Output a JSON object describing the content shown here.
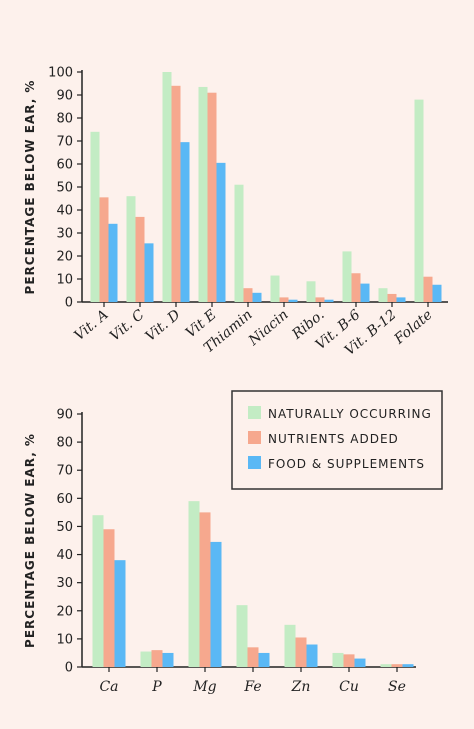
{
  "colors": {
    "background": "#fdf1ec",
    "naturally_occurring": "#c3ecc4",
    "nutrients_added": "#f6a88e",
    "food_supplements": "#5ab8f5",
    "axis": "#222222"
  },
  "legend": {
    "placement": "top-right of lower chart",
    "items": [
      {
        "label": "NATURALLY OCCURRING",
        "color_key": "naturally_occurring"
      },
      {
        "label": "NUTRIENTS ADDED",
        "color_key": "nutrients_added"
      },
      {
        "label": "FOOD & SUPPLEMENTS",
        "color_key": "food_supplements"
      }
    ]
  },
  "chart_data": [
    {
      "type": "bar",
      "title": "",
      "xlabel": "",
      "ylabel": "PERCENTAGE BELOW EAR, %",
      "ylim": [
        0,
        100
      ],
      "yticks": [
        0,
        10,
        20,
        30,
        40,
        50,
        60,
        70,
        80,
        90,
        100
      ],
      "grid": false,
      "categories": [
        "Vit. A",
        "Vit. C",
        "Vit. D",
        "Vit E",
        "Thiamin",
        "Niacin",
        "Ribo.",
        "Vit. B-6",
        "Vit. B-12",
        "Folate"
      ],
      "series": [
        {
          "name": "NATURALLY OCCURRING",
          "color_key": "naturally_occurring",
          "values": [
            74,
            46,
            100,
            93.5,
            51,
            11.5,
            9,
            22,
            6,
            88
          ]
        },
        {
          "name": "NUTRIENTS ADDED",
          "color_key": "nutrients_added",
          "values": [
            45.5,
            37,
            94,
            91,
            6,
            2,
            2,
            12.5,
            3.5,
            11
          ]
        },
        {
          "name": "FOOD & SUPPLEMENTS",
          "color_key": "food_supplements",
          "values": [
            34,
            25.5,
            69.5,
            60.5,
            4,
            1,
            1,
            8,
            2,
            7.5
          ]
        }
      ]
    },
    {
      "type": "bar",
      "title": "",
      "xlabel": "",
      "ylabel": "PERCENTAGE BELOW EAR, %",
      "ylim": [
        0,
        90
      ],
      "yticks": [
        0,
        10,
        20,
        30,
        40,
        50,
        60,
        70,
        80,
        90
      ],
      "grid": false,
      "categories": [
        "Ca",
        "P",
        "Mg",
        "Fe",
        "Zn",
        "Cu",
        "Se"
      ],
      "series": [
        {
          "name": "NATURALLY OCCURRING",
          "color_key": "naturally_occurring",
          "values": [
            54,
            5.5,
            59,
            22,
            15,
            5,
            1
          ]
        },
        {
          "name": "NUTRIENTS ADDED",
          "color_key": "nutrients_added",
          "values": [
            49,
            6,
            55,
            7,
            10.5,
            4.5,
            1
          ]
        },
        {
          "name": "FOOD & SUPPLEMENTS",
          "color_key": "food_supplements",
          "values": [
            38,
            5,
            44.5,
            5,
            8,
            3,
            1
          ]
        }
      ]
    }
  ]
}
